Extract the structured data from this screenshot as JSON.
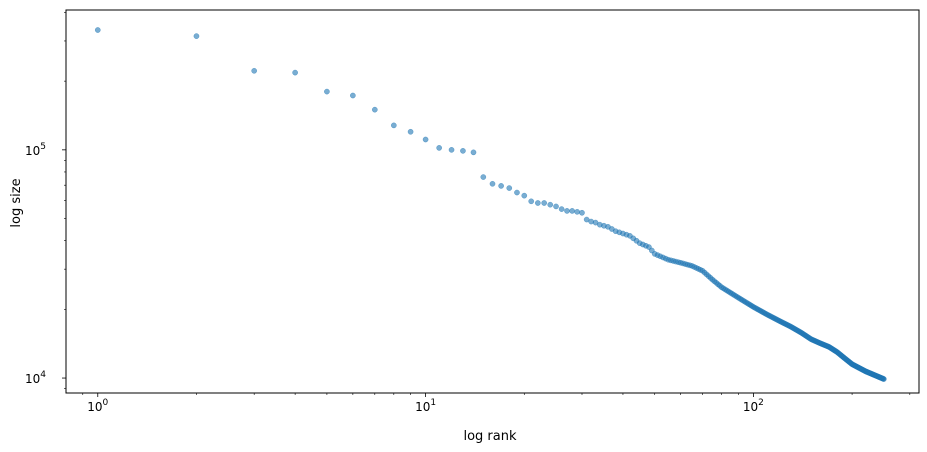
{
  "chart_data": {
    "type": "scatter",
    "title": "",
    "xlabel": "log rank",
    "ylabel": "log size",
    "xscale": "log",
    "yscale": "log",
    "xlim": [
      0.8,
      320
    ],
    "ylim": [
      8600,
      410000
    ],
    "x_ticks": [
      {
        "value": 1,
        "base": "10",
        "exp": "0"
      },
      {
        "value": 10,
        "base": "10",
        "exp": "1"
      },
      {
        "value": 100,
        "base": "10",
        "exp": "2"
      }
    ],
    "y_ticks": [
      {
        "value": 10000,
        "base": "10",
        "exp": "4"
      },
      {
        "value": 100000,
        "base": "10",
        "exp": "5"
      }
    ],
    "grid": false,
    "marker_color": "#1f77b4",
    "marker_alpha": 0.6,
    "points_head": [
      [
        1,
        335000
      ],
      [
        2,
        315000
      ],
      [
        3,
        222000
      ],
      [
        4,
        218000
      ],
      [
        5,
        180000
      ],
      [
        6,
        173000
      ],
      [
        7,
        150000
      ],
      [
        8,
        128000
      ],
      [
        9,
        120000
      ],
      [
        10,
        111000
      ],
      [
        11,
        102000
      ],
      [
        12,
        100000
      ],
      [
        13,
        99000
      ],
      [
        14,
        97500
      ],
      [
        15,
        76000
      ],
      [
        16,
        71000
      ],
      [
        17,
        69500
      ],
      [
        18,
        68000
      ],
      [
        19,
        65000
      ],
      [
        20,
        63000
      ],
      [
        21,
        59500
      ],
      [
        22,
        58500
      ],
      [
        23,
        58500
      ],
      [
        24,
        57500
      ],
      [
        25,
        56500
      ],
      [
        26,
        55000
      ],
      [
        27,
        54000
      ],
      [
        28,
        54000
      ],
      [
        29,
        53500
      ],
      [
        30,
        53000
      ],
      [
        31,
        49500
      ],
      [
        32,
        48500
      ],
      [
        33,
        48000
      ],
      [
        34,
        47000
      ],
      [
        35,
        46500
      ],
      [
        36,
        46000
      ],
      [
        37,
        45000
      ],
      [
        38,
        44000
      ]
    ],
    "points_tail": {
      "rank_start": 39,
      "rank_end": 250,
      "anchors": [
        [
          39,
          43500
        ],
        [
          42,
          42000
        ],
        [
          45,
          39000
        ],
        [
          48,
          37500
        ],
        [
          50,
          35000
        ],
        [
          55,
          33000
        ],
        [
          60,
          32000
        ],
        [
          65,
          31000
        ],
        [
          70,
          29500
        ],
        [
          75,
          27000
        ],
        [
          80,
          25000
        ],
        [
          90,
          22500
        ],
        [
          100,
          20500
        ],
        [
          110,
          19000
        ],
        [
          120,
          17800
        ],
        [
          130,
          16800
        ],
        [
          140,
          15800
        ],
        [
          150,
          14800
        ],
        [
          160,
          14200
        ],
        [
          170,
          13700
        ],
        [
          180,
          13000
        ],
        [
          190,
          12200
        ],
        [
          200,
          11500
        ],
        [
          220,
          10700
        ],
        [
          250,
          9900
        ]
      ]
    }
  }
}
